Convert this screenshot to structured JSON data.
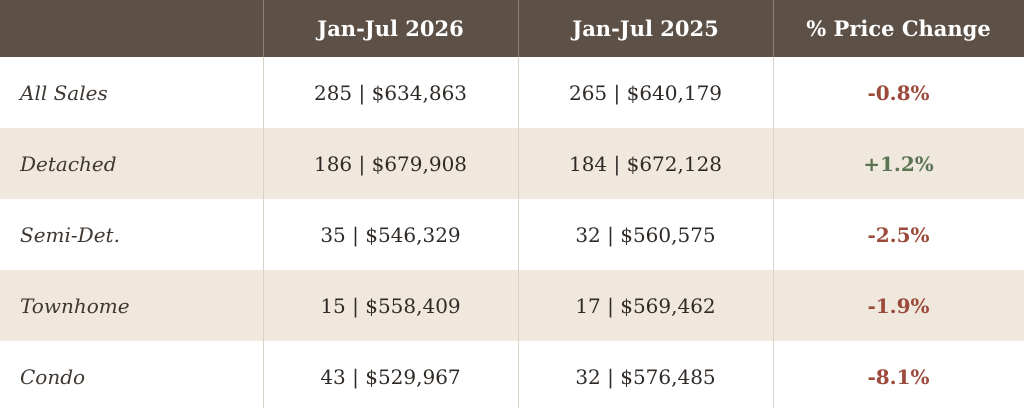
{
  "chart_data": {
    "type": "table",
    "columns": [
      "",
      "Jan-Jul 2026",
      "Jan-Jul 2025",
      "% Price Change"
    ],
    "rows": [
      {
        "label": "All Sales",
        "y2026": "285 | $634,863",
        "y2025": "265 | $640,179",
        "change": "-0.8%",
        "change_value": -0.8
      },
      {
        "label": "Detached",
        "y2026": "186 | $679,908",
        "y2025": "184 | $672,128",
        "change": "+1.2%",
        "change_value": 1.2
      },
      {
        "label": "Semi-Det.",
        "y2026": "35 | $546,329",
        "y2025": "32 | $560,575",
        "change": "-2.5%",
        "change_value": -2.5
      },
      {
        "label": "Townhome",
        "y2026": "15 | $558,409",
        "y2025": "17 | $569,462",
        "change": "-1.9%",
        "change_value": -1.9
      },
      {
        "label": "Condo",
        "y2026": "43 | $529,967",
        "y2025": "32 | $576,485",
        "change": "-8.1%",
        "change_value": -8.1
      }
    ]
  },
  "colors": {
    "header_bg": "#5c5047",
    "header_text": "#ffffff",
    "alt_row_bg": "#f0e8dd",
    "row_bg": "#ffffff",
    "negative": "#9b4a3c",
    "positive": "#5a7352"
  }
}
